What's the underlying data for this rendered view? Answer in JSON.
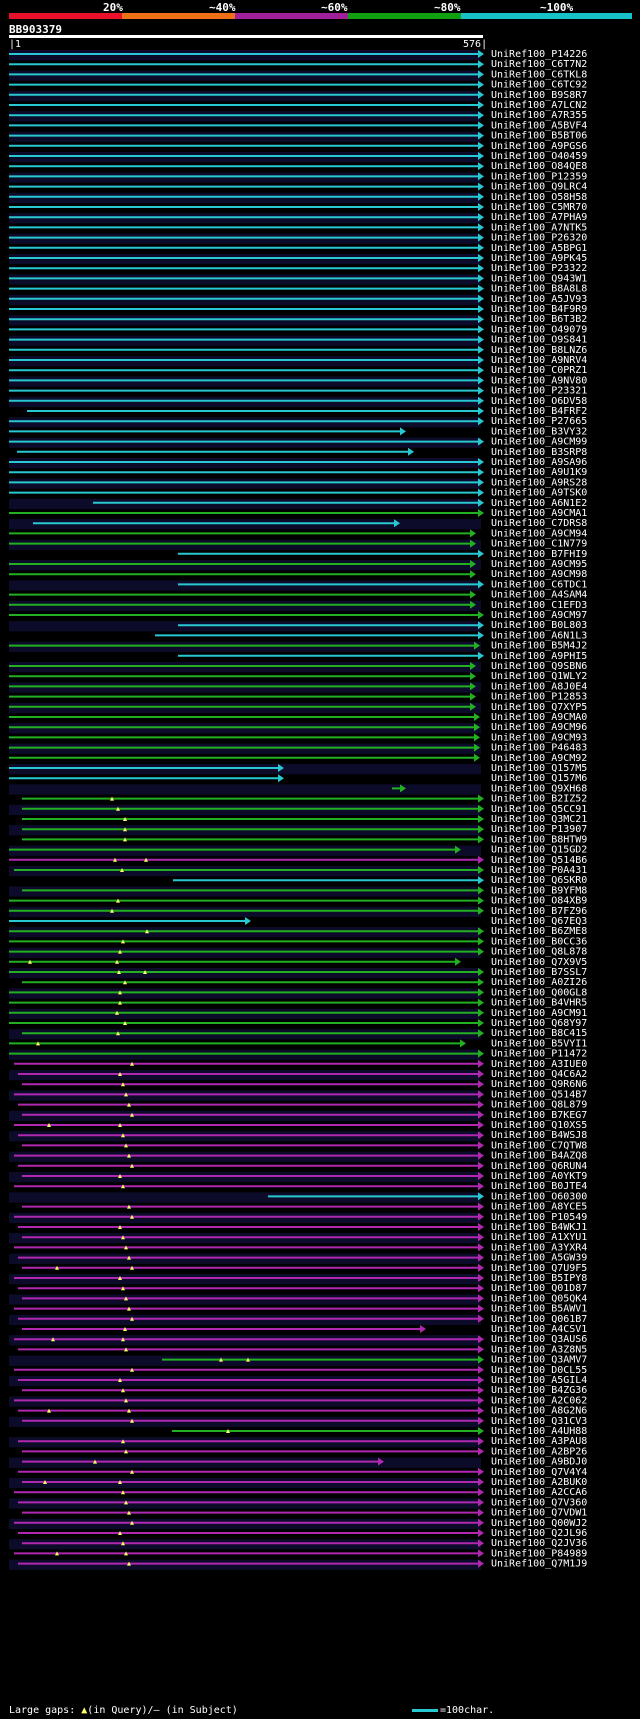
{
  "legend": {
    "labels": [
      "20%",
      "~40%",
      "~60%",
      "~80%",
      "~100%"
    ],
    "colors": [
      "#e8102a",
      "#f07018",
      "#a0209a",
      "#10a010",
      "#18c0c8"
    ]
  },
  "query": {
    "name": "BB903379",
    "start": "1",
    "end": "576"
  },
  "palette": {
    "C": "#28c8d2",
    "G": "#22b022",
    "M": "#b028b0",
    "band": "#0c0c2a"
  },
  "hits": [
    "UniRef100_P14226",
    "UniRef100_C6T7N2",
    "UniRef100_C6TKL8",
    "UniRef100_C6TC92",
    "UniRef100_B9S8R7",
    "UniRef100_A7LCN2",
    "UniRef100_A7R355",
    "UniRef100_A5BVF4",
    "UniRef100_B5BT06",
    "UniRef100_A9PGS6",
    "UniRef100_O40459",
    "UniRef100_O84QE8",
    "UniRef100_P12359",
    "UniRef100_Q9LRC4",
    "UniRef100_O58H58",
    "UniRef100_C5MR70",
    "UniRef100_A7PHA9",
    "UniRef100_A7NTK5",
    "UniRef100_P26320",
    "UniRef100_A5BPG1",
    "UniRef100_A9PK45",
    "UniRef100_P23322",
    "UniRef100_Q943W1",
    "UniRef100_B8A8L8",
    "UniRef100_A5JV93",
    "UniRef100_B4F9R9",
    "UniRef100_B6T3B2",
    "UniRef100_O49079",
    "UniRef100_O9S841",
    "UniRef100_B8LNZ6",
    "UniRef100_A9NRV4",
    "UniRef100_C0PRZ1",
    "UniRef100_A9NV80",
    "UniRef100_P23321",
    "UniRef100_O6DV58",
    "UniRef100_B4FRF2",
    "UniRef100_P27665",
    "UniRef100_B3VY32",
    "UniRef100_A9CM99",
    "UniRef100_B3SRP8",
    "UniRef100_A9SA96",
    "UniRef100_A9U1K9",
    "UniRef100_A9RS28",
    "UniRef100_A9TSK0",
    "UniRef100_A6N1E2",
    "UniRef100_A9CMA1",
    "UniRef100_C7DRS8",
    "UniRef100_A9CM94",
    "UniRef100_C1N779",
    "UniRef100_B7FHI9",
    "UniRef100_A9CM95",
    "UniRef100_A9CM98",
    "UniRef100_C6TDC1",
    "UniRef100_A4SAM4",
    "UniRef100_C1EFD3",
    "UniRef100_A9CM97",
    "UniRef100_B0L803",
    "UniRef100_A6N1L3",
    "UniRef100_B5M4J2",
    "UniRef100_A9PHI5",
    "UniRef100_Q9SBN6",
    "UniRef100_Q1WLY2",
    "UniRef100_A8J0E4",
    "UniRef100_P12853",
    "UniRef100_Q7XYP5",
    "UniRef100_A9CMA0",
    "UniRef100_A9CM96",
    "UniRef100_A9CM93",
    "UniRef100_P46483",
    "UniRef100_A9CM92",
    "UniRef100_Q157M5",
    "UniRef100_Q157M6",
    "UniRef100_Q9XH68",
    "UniRef100_B2IZ52",
    "UniRef100_Q5CC91",
    "UniRef100_Q3MC21",
    "UniRef100_P13907",
    "UniRef100_B8HTW9",
    "UniRef100_Q15GD2",
    "UniRef100_Q514B6",
    "UniRef100_P0A431",
    "UniRef100_Q6SKR0",
    "UniRef100_B9YFM8",
    "UniRef100_O84XB9",
    "UniRef100_B7FZ96",
    "UniRef100_Q67EQ3",
    "UniRef100_B6ZME8",
    "UniRef100_B0CC36",
    "UniRef100_Q8L878",
    "UniRef100_Q7X9V5",
    "UniRef100_B7SSL7",
    "UniRef100_A0ZI26",
    "UniRef100_Q00GL8",
    "UniRef100_B4VHR5",
    "UniRef100_A9CM91",
    "UniRef100_Q68Y97",
    "UniRef100_B8C415",
    "UniRef100_B5VYI1",
    "UniRef100_P11472",
    "UniRef100_A3IUE0",
    "UniRef100_Q4C6A2",
    "UniRef100_Q9R6N6",
    "UniRef100_Q514B7",
    "UniRef100_Q8L879",
    "UniRef100_B7KEG7",
    "UniRef100_Q10XS5",
    "UniRef100_B4WSJ8",
    "UniRef100_C7QTW8",
    "UniRef100_B4AZQ8",
    "UniRef100_Q6RUN4",
    "UniRef100_A0YKT9",
    "UniRef100_B0JTE4",
    "UniRef100_O60300",
    "UniRef100_A8YCE5",
    "UniRef100_P10549",
    "UniRef100_B4WKJ1",
    "UniRef100_A1XYU1",
    "UniRef100_A3YXR4",
    "UniRef100_A5GW39",
    "UniRef100_Q7U9F5",
    "UniRef100_B5IPY8",
    "UniRef100_Q01D87",
    "UniRef100_Q05QK4",
    "UniRef100_B5AWV1",
    "UniRef100_Q061B7",
    "UniRef100_A4CSV1",
    "UniRef100_Q3AUS6",
    "UniRef100_A3Z8N5",
    "UniRef100_Q3AMV7",
    "UniRef100_D0CL55",
    "UniRef100_A5GIL4",
    "UniRef100_B4ZG36",
    "UniRef100_A2C062",
    "UniRef100_A8G2N6",
    "UniRef100_Q31CV3",
    "UniRef100_A4UH88",
    "UniRef100_A3PAU8",
    "UniRef100_A2BP26",
    "UniRef100_A9BDJ0",
    "UniRef100_Q7V4Y4",
    "UniRef100_A2BUK0",
    "UniRef100_A2CCA6",
    "UniRef100_Q7V360",
    "UniRef100_Q7VDW1",
    "UniRef100_Q00WJ2",
    "UniRef100_Q2JL96",
    "UniRef100_Q2JV36",
    "UniRef100_P84989",
    "UniRef100_Q7M1J9"
  ],
  "footer": {
    "gaps_prefix": "Large gaps:",
    "gaps_query_triangle": "▲",
    "gaps_query": "(in Query)/",
    "gaps_subject": "– (in Subject)",
    "scale": "=100char."
  }
}
